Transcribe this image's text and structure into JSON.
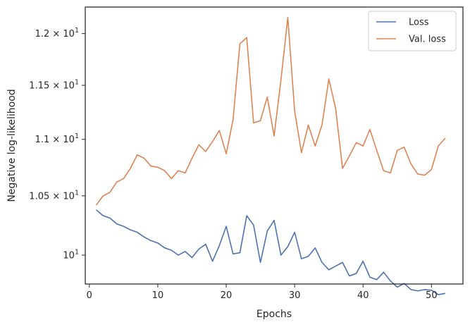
{
  "chart_data": {
    "type": "line",
    "xlabel": "Epochs",
    "ylabel": "Negative log-likelihood",
    "xlim": [
      -0.6,
      54.6
    ],
    "ylim": [
      9.765,
      12.265
    ],
    "yscale": "log",
    "grid": false,
    "legend_position": "top-right",
    "x_ticks": [
      {
        "value": 0,
        "label": "0"
      },
      {
        "value": 10,
        "label": "10"
      },
      {
        "value": 20,
        "label": "20"
      },
      {
        "value": 30,
        "label": "30"
      },
      {
        "value": 40,
        "label": "40"
      },
      {
        "value": 50,
        "label": "50"
      }
    ],
    "y_ticks": [
      {
        "value": 10.0,
        "mantissa": "",
        "base": "10",
        "exponent": "1"
      },
      {
        "value": 10.5,
        "mantissa": "1.05 × ",
        "base": "10",
        "exponent": "1"
      },
      {
        "value": 11.0,
        "mantissa": "1.1 × ",
        "base": "10",
        "exponent": "1"
      },
      {
        "value": 11.5,
        "mantissa": "1.15 × ",
        "base": "10",
        "exponent": "1"
      },
      {
        "value": 12.0,
        "mantissa": "1.2 × ",
        "base": "10",
        "exponent": "1"
      }
    ],
    "x": [
      1,
      2,
      3,
      4,
      5,
      6,
      7,
      8,
      9,
      10,
      11,
      12,
      13,
      14,
      15,
      16,
      17,
      18,
      19,
      20,
      21,
      22,
      23,
      24,
      25,
      26,
      27,
      28,
      29,
      30,
      31,
      32,
      33,
      34,
      35,
      36,
      37,
      38,
      39,
      40,
      41,
      42,
      43,
      44,
      45,
      46,
      47,
      48,
      49,
      50,
      51,
      52
    ],
    "series": [
      {
        "name": "Loss",
        "color": "#4c72b0",
        "values": [
          10.38,
          10.33,
          10.31,
          10.26,
          10.24,
          10.21,
          10.19,
          10.15,
          10.12,
          10.1,
          10.06,
          10.04,
          10.0,
          10.03,
          9.98,
          10.05,
          10.09,
          9.95,
          10.08,
          10.24,
          10.01,
          10.02,
          10.33,
          10.25,
          9.94,
          10.2,
          10.29,
          10.0,
          10.07,
          10.19,
          9.97,
          9.99,
          10.06,
          9.94,
          9.88,
          9.91,
          9.94,
          9.83,
          9.85,
          9.95,
          9.82,
          9.8,
          9.86,
          9.79,
          9.74,
          9.77,
          9.72,
          9.71,
          9.72,
          9.715,
          9.68,
          9.69
        ]
      },
      {
        "name": "Val. loss",
        "color": "#dd8452",
        "values": [
          10.42,
          10.5,
          10.53,
          10.62,
          10.65,
          10.74,
          10.86,
          10.83,
          10.76,
          10.75,
          10.72,
          10.65,
          10.72,
          10.7,
          10.83,
          10.95,
          10.89,
          10.98,
          11.08,
          10.87,
          11.18,
          11.9,
          11.96,
          11.15,
          11.17,
          11.39,
          11.03,
          11.55,
          12.16,
          11.26,
          10.88,
          11.13,
          10.94,
          11.13,
          11.56,
          11.28,
          10.74,
          10.85,
          10.97,
          10.94,
          11.09,
          10.9,
          10.72,
          10.7,
          10.9,
          10.93,
          10.78,
          10.69,
          10.68,
          10.73,
          10.94,
          11.01
        ]
      }
    ]
  }
}
